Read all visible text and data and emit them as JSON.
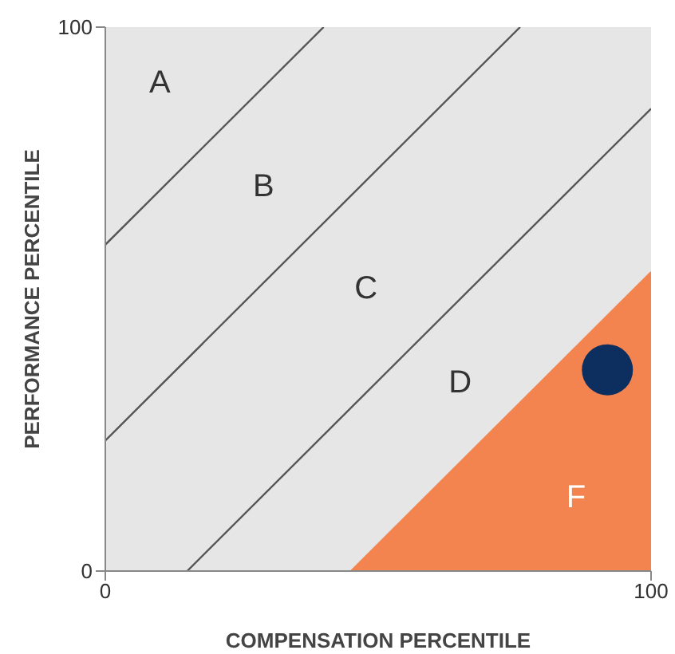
{
  "chart_data": {
    "type": "scatter",
    "xlabel": "COMPENSATION PERCENTILE",
    "ylabel": "PERFORMANCE PERCENTILE",
    "xlim": [
      0,
      100
    ],
    "ylim": [
      0,
      100
    ],
    "xticks": [
      0,
      100
    ],
    "yticks": [
      0,
      100
    ],
    "grid": false,
    "legend": false,
    "series": [
      {
        "type": "area",
        "color": "#f4844f",
        "x": [
          45,
          100
        ],
        "values": [
          0,
          55
        ]
      },
      {
        "type": "line",
        "color": "#555555",
        "x": [
          0,
          40
        ],
        "values": [
          60,
          100
        ]
      },
      {
        "type": "line",
        "color": "#555555",
        "x": [
          0,
          76
        ],
        "values": [
          24,
          100
        ]
      },
      {
        "type": "line",
        "color": "#555555",
        "x": [
          15,
          100
        ],
        "values": [
          0,
          85
        ]
      },
      {
        "color": "#0d2f5f",
        "marker": "circle",
        "x": [
          92
        ],
        "values": [
          37
        ]
      }
    ],
    "annotations": [
      "A",
      "B",
      "C",
      "D",
      "F"
    ]
  }
}
